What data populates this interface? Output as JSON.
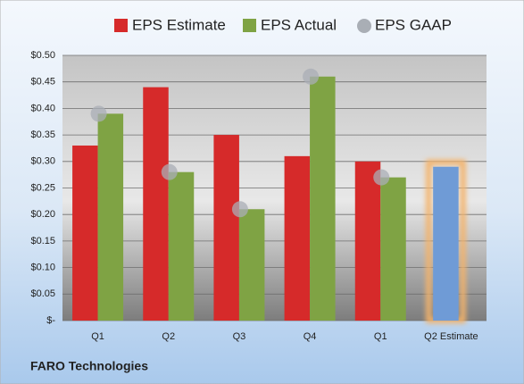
{
  "chart_data": {
    "type": "bar",
    "title": "FARO Technologies",
    "categories": [
      "Q1",
      "Q2",
      "Q3",
      "Q4",
      "Q1",
      "Q2 Estimate"
    ],
    "series": [
      {
        "name": "EPS Estimate",
        "color": "#d62a2a",
        "values": [
          0.33,
          0.44,
          0.35,
          0.31,
          0.3,
          0.29
        ]
      },
      {
        "name": "EPS Actual",
        "color": "#7fa344",
        "values": [
          0.39,
          0.28,
          0.21,
          0.46,
          0.27,
          null
        ]
      },
      {
        "name": "EPS GAAP",
        "color": "#a9aeb5",
        "marker": "circle",
        "values": [
          0.39,
          0.28,
          0.21,
          0.46,
          0.27,
          null
        ]
      }
    ],
    "highlight": {
      "index": 5,
      "color": "#6f9bd6",
      "glow": "#f4b36b"
    },
    "ylim": [
      0,
      0.5
    ],
    "yticks": [
      {
        "value": 0,
        "label": "$-"
      },
      {
        "value": 0.05,
        "label": "$0.05"
      },
      {
        "value": 0.1,
        "label": "$0.10"
      },
      {
        "value": 0.15,
        "label": "$0.15"
      },
      {
        "value": 0.2,
        "label": "$0.20"
      },
      {
        "value": 0.25,
        "label": "$0.25"
      },
      {
        "value": 0.3,
        "label": "$0.30"
      },
      {
        "value": 0.35,
        "label": "$0.35"
      },
      {
        "value": 0.4,
        "label": "$0.40"
      },
      {
        "value": 0.45,
        "label": "$0.45"
      },
      {
        "value": 0.5,
        "label": "$0.50"
      }
    ],
    "grid": true,
    "legend": "top"
  }
}
